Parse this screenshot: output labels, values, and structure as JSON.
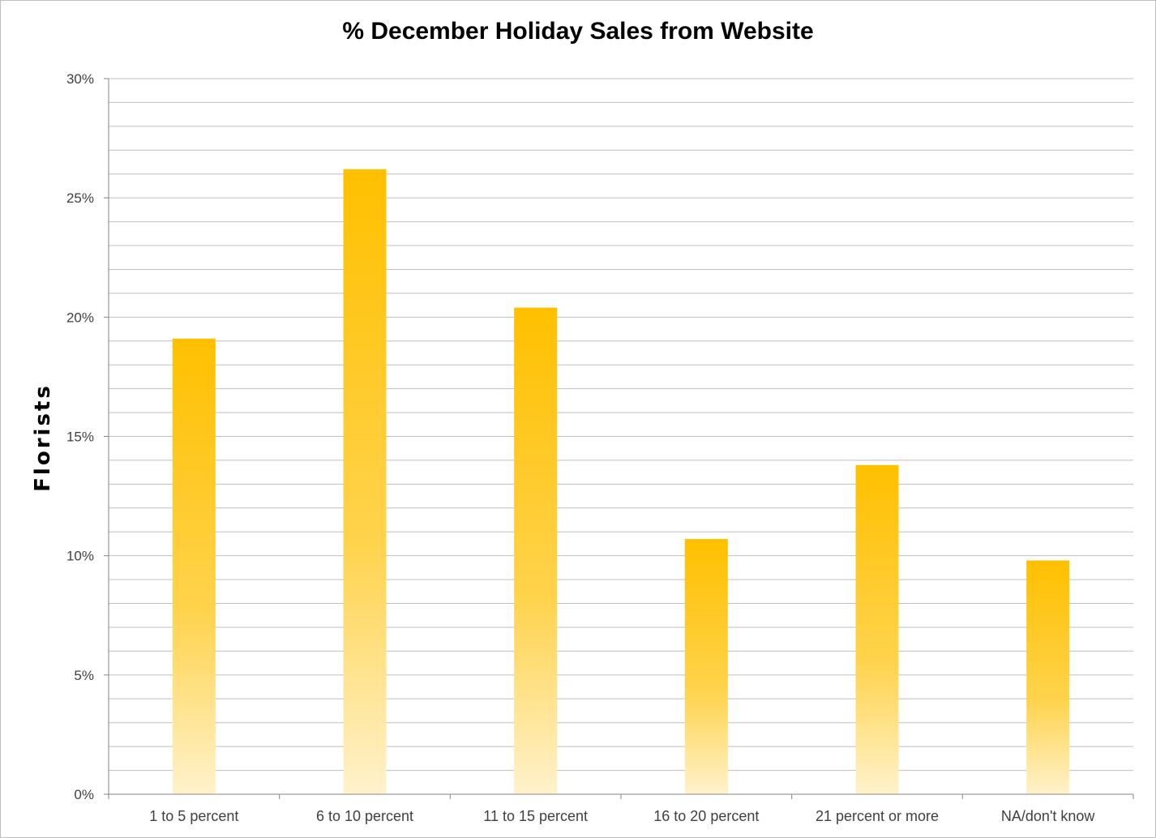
{
  "chart_data": {
    "type": "bar",
    "title": "% December Holiday Sales from Website",
    "xlabel": "",
    "ylabel": "Florists",
    "categories": [
      "1 to 5 percent",
      "6 to 10 percent",
      "11 to 15 percent",
      "16 to 20 percent",
      "21 percent or more",
      "NA/don't know"
    ],
    "values": [
      19.1,
      26.2,
      20.4,
      10.7,
      13.8,
      9.8
    ],
    "ylim": [
      0,
      30
    ],
    "yticks": [
      0,
      5,
      10,
      15,
      20,
      25,
      30
    ],
    "ytick_labels": [
      "0%",
      "5%",
      "10%",
      "15%",
      "20%",
      "25%",
      "30%"
    ],
    "minor_gridlines_per_major": 5,
    "grid": true,
    "legend": "none",
    "bar_color_top": "#FFC000",
    "bar_color_bottom": "#FFF2CC",
    "gridline_color": "#BFBFBF"
  }
}
